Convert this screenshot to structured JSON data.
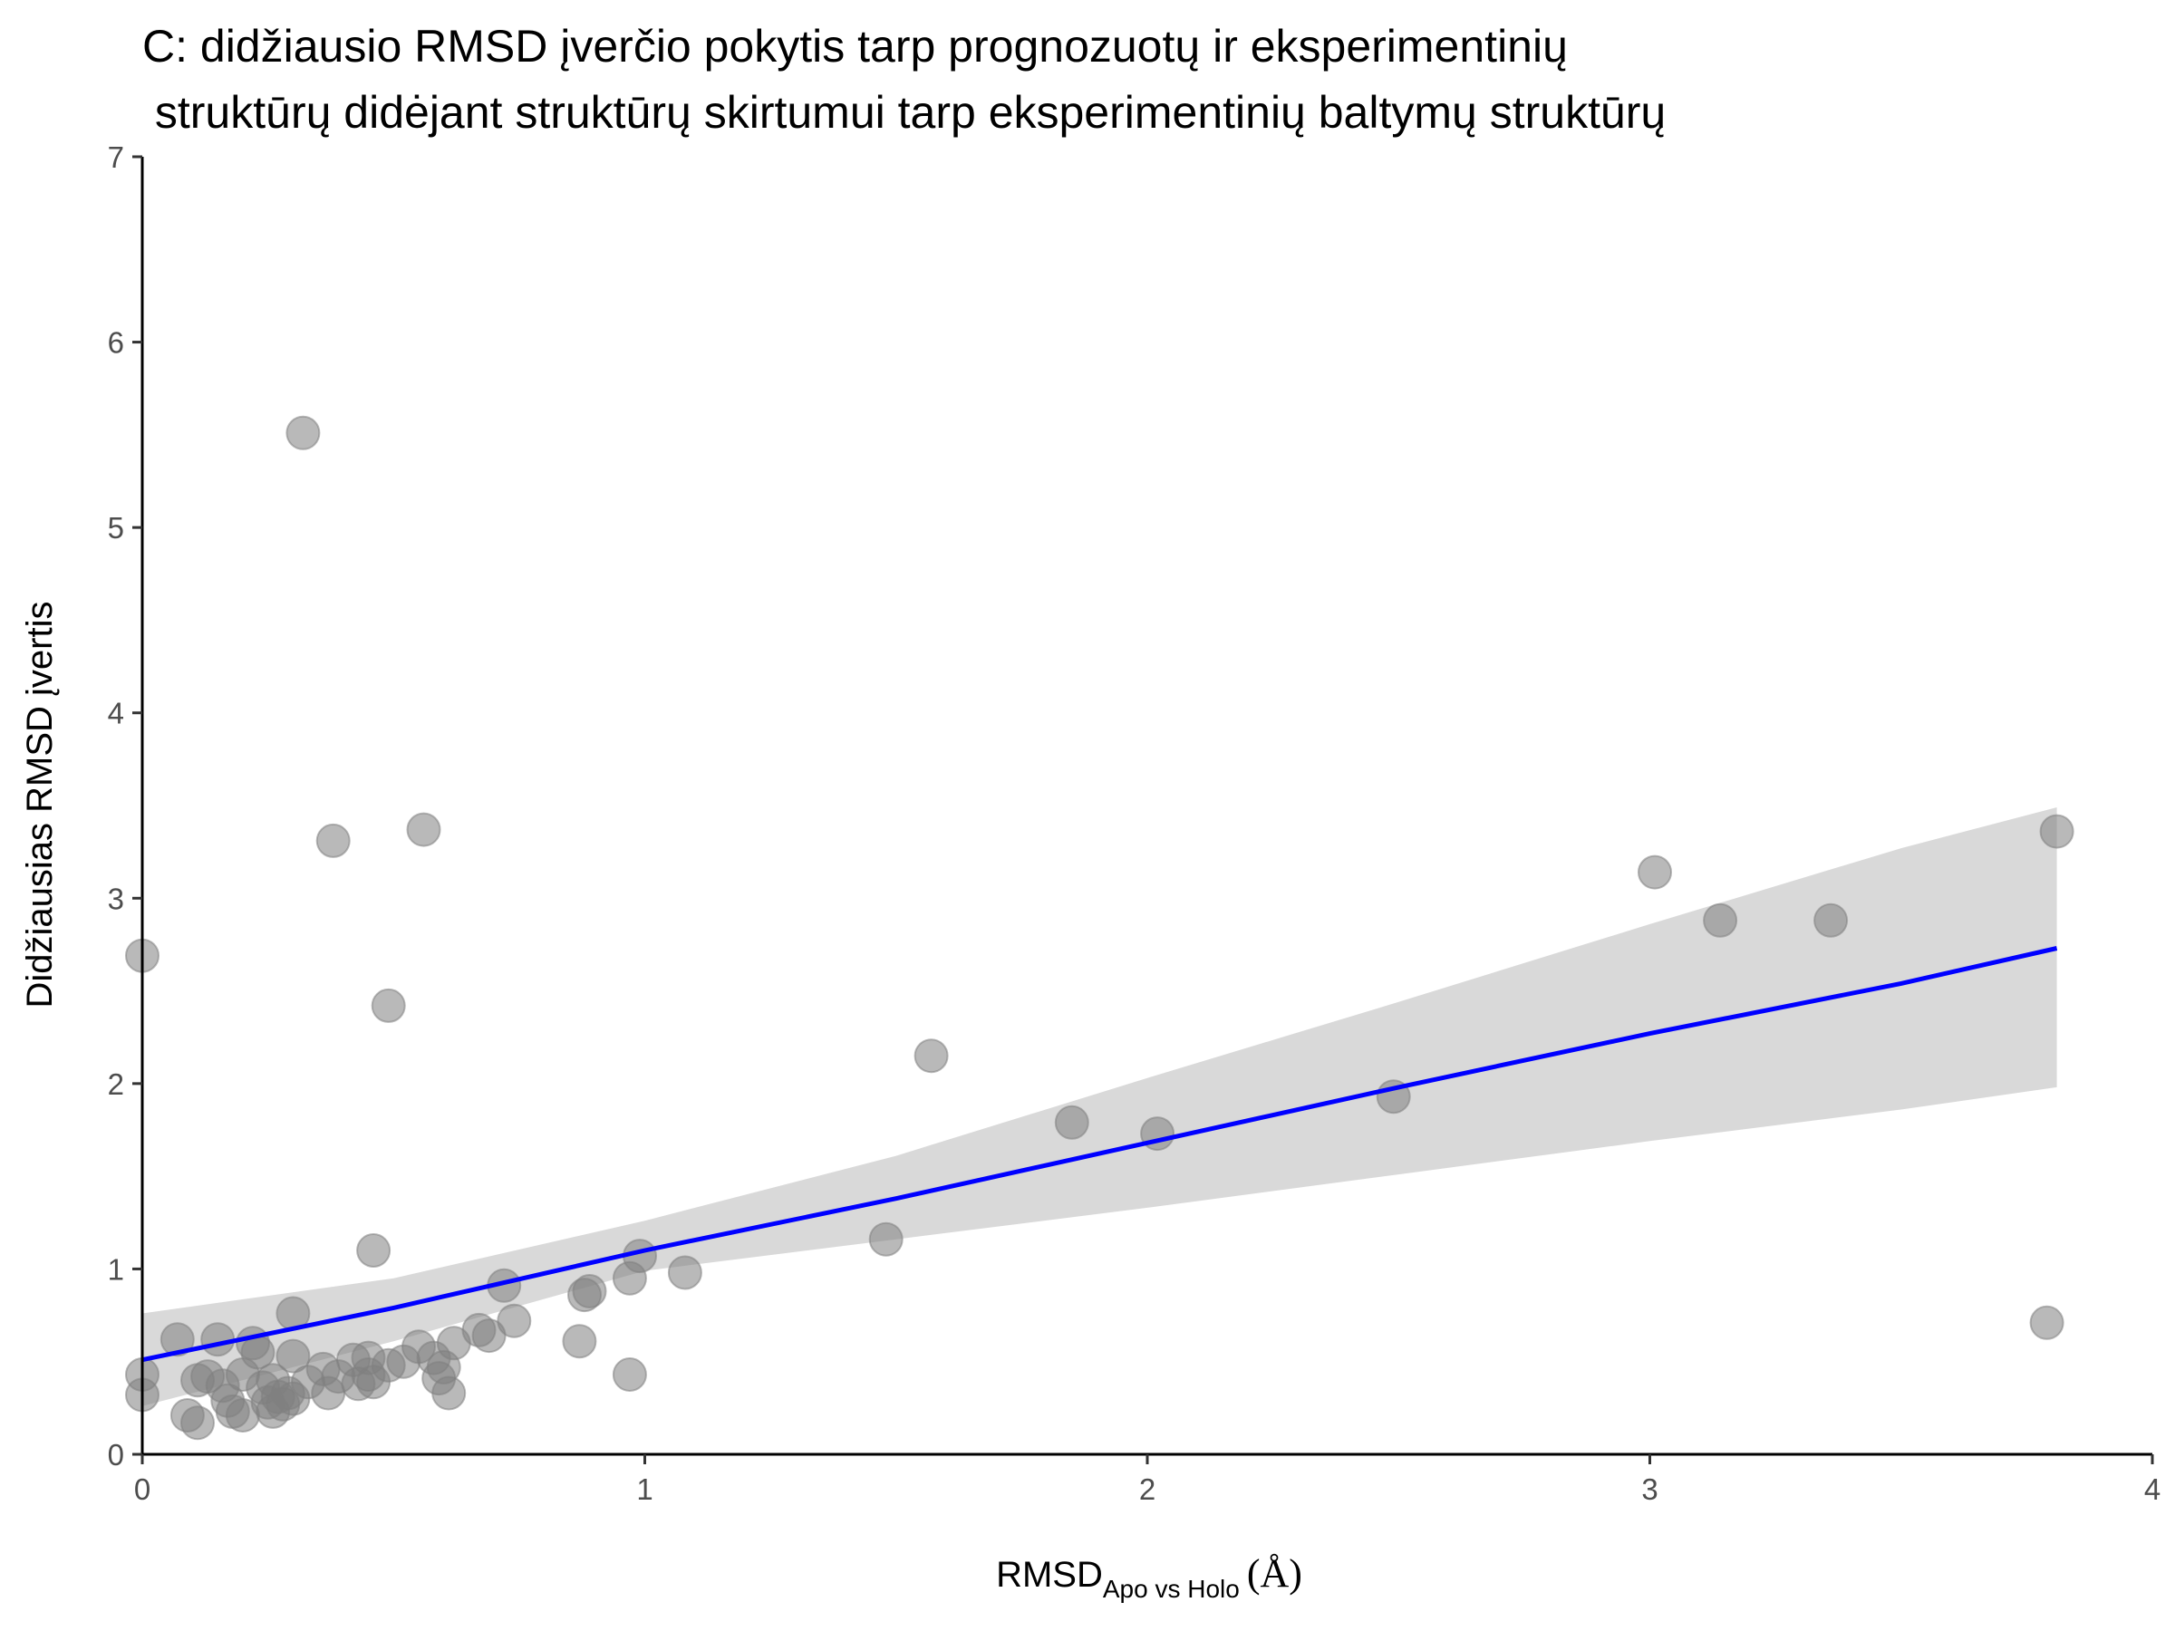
{
  "chart_data": {
    "type": "scatter",
    "title_line1": "C: didžiausio RMSD įverčio pokytis tarp prognozuotų ir eksperimentinių",
    "title_line2": " struktūrų didėjant struktūrų skirtumui tarp eksperimentinių baltymų struktūrų",
    "xlabel_main": "RMSD",
    "xlabel_sub": "Apo vs Holo",
    "xlabel_unit": "(Å)",
    "ylabel": "Didžiausias RMSD įvertis",
    "xlim": [
      0,
      4
    ],
    "ylim": [
      0,
      7
    ],
    "x_ticks": [
      "0",
      "1",
      "2",
      "3",
      "4"
    ],
    "y_ticks": [
      "0",
      "1",
      "2",
      "3",
      "4",
      "5",
      "6",
      "7"
    ],
    "grid": false,
    "legend": "none",
    "point_color": "#808080",
    "fit_color": "#0000ff",
    "band_color": "#d9d9d9",
    "fit": {
      "x": [
        0,
        0.5,
        1,
        1.5,
        2,
        2.5,
        3,
        3.5,
        3.81
      ],
      "y": [
        0.51,
        0.79,
        1.1,
        1.38,
        1.68,
        1.98,
        2.27,
        2.54,
        2.73
      ],
      "lower": [
        0.26,
        0.61,
        0.99,
        1.16,
        1.33,
        1.51,
        1.69,
        1.86,
        1.98
      ],
      "upper": [
        0.76,
        0.95,
        1.26,
        1.61,
        2.03,
        2.44,
        2.86,
        3.27,
        3.49
      ]
    },
    "points": [
      {
        "x": 0.0,
        "y": 2.69
      },
      {
        "x": 0.0,
        "y": 0.43
      },
      {
        "x": 0.0,
        "y": 0.32
      },
      {
        "x": 0.07,
        "y": 0.62
      },
      {
        "x": 0.09,
        "y": 0.21
      },
      {
        "x": 0.11,
        "y": 0.4
      },
      {
        "x": 0.11,
        "y": 0.17
      },
      {
        "x": 0.13,
        "y": 0.42
      },
      {
        "x": 0.15,
        "y": 0.62
      },
      {
        "x": 0.16,
        "y": 0.37
      },
      {
        "x": 0.17,
        "y": 0.29
      },
      {
        "x": 0.18,
        "y": 0.23
      },
      {
        "x": 0.2,
        "y": 0.43
      },
      {
        "x": 0.2,
        "y": 0.21
      },
      {
        "x": 0.22,
        "y": 0.6
      },
      {
        "x": 0.23,
        "y": 0.55
      },
      {
        "x": 0.24,
        "y": 0.36
      },
      {
        "x": 0.25,
        "y": 0.28
      },
      {
        "x": 0.26,
        "y": 0.4
      },
      {
        "x": 0.26,
        "y": 0.23
      },
      {
        "x": 0.27,
        "y": 0.31
      },
      {
        "x": 0.28,
        "y": 0.27
      },
      {
        "x": 0.29,
        "y": 0.33
      },
      {
        "x": 0.3,
        "y": 0.76
      },
      {
        "x": 0.3,
        "y": 0.53
      },
      {
        "x": 0.3,
        "y": 0.3
      },
      {
        "x": 0.32,
        "y": 5.51
      },
      {
        "x": 0.33,
        "y": 0.39
      },
      {
        "x": 0.36,
        "y": 0.46
      },
      {
        "x": 0.37,
        "y": 0.33
      },
      {
        "x": 0.38,
        "y": 3.31
      },
      {
        "x": 0.39,
        "y": 0.42
      },
      {
        "x": 0.42,
        "y": 0.51
      },
      {
        "x": 0.43,
        "y": 0.38
      },
      {
        "x": 0.45,
        "y": 0.52
      },
      {
        "x": 0.45,
        "y": 0.43
      },
      {
        "x": 0.46,
        "y": 1.1
      },
      {
        "x": 0.46,
        "y": 0.39
      },
      {
        "x": 0.49,
        "y": 2.42
      },
      {
        "x": 0.49,
        "y": 0.48
      },
      {
        "x": 0.52,
        "y": 0.5
      },
      {
        "x": 0.55,
        "y": 0.58
      },
      {
        "x": 0.56,
        "y": 3.37
      },
      {
        "x": 0.58,
        "y": 0.52
      },
      {
        "x": 0.59,
        "y": 0.41
      },
      {
        "x": 0.6,
        "y": 0.47
      },
      {
        "x": 0.61,
        "y": 0.33
      },
      {
        "x": 0.62,
        "y": 0.6
      },
      {
        "x": 0.67,
        "y": 0.67
      },
      {
        "x": 0.69,
        "y": 0.64
      },
      {
        "x": 0.72,
        "y": 0.91
      },
      {
        "x": 0.74,
        "y": 0.72
      },
      {
        "x": 0.87,
        "y": 0.61
      },
      {
        "x": 0.88,
        "y": 0.86
      },
      {
        "x": 0.89,
        "y": 0.88
      },
      {
        "x": 0.97,
        "y": 0.43
      },
      {
        "x": 0.97,
        "y": 0.95
      },
      {
        "x": 0.99,
        "y": 1.07
      },
      {
        "x": 1.08,
        "y": 0.98
      },
      {
        "x": 1.48,
        "y": 1.16
      },
      {
        "x": 1.57,
        "y": 2.15
      },
      {
        "x": 1.85,
        "y": 1.79
      },
      {
        "x": 2.02,
        "y": 1.73
      },
      {
        "x": 2.49,
        "y": 1.93
      },
      {
        "x": 3.01,
        "y": 3.14
      },
      {
        "x": 3.14,
        "y": 2.88
      },
      {
        "x": 3.36,
        "y": 2.88
      },
      {
        "x": 3.79,
        "y": 0.71
      },
      {
        "x": 3.81,
        "y": 3.36
      }
    ]
  }
}
